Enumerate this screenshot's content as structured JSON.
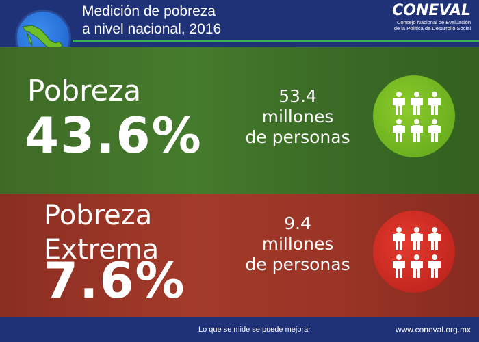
{
  "header": {
    "title_line1": "Medición de pobreza",
    "title_line2": "a nivel nacional, 2016",
    "brand_name": "CONEVAL",
    "brand_sub_line1": "Consejo Nacional de Evaluación",
    "brand_sub_line2": "de la Política de Desarrollo Social"
  },
  "pobreza": {
    "label": "Pobreza",
    "value": "43.6%",
    "count_line1": "53.4",
    "count_line2": "millones",
    "count_line3": "de personas",
    "circle_color": "#7bbf26",
    "icon": "people-icon"
  },
  "pobreza_extrema": {
    "label_line1": "Pobreza",
    "label_line2": "Extrema",
    "value": "7.6%",
    "count_line1": "9.4",
    "count_line2": "millones",
    "count_line3": "de personas",
    "circle_color": "#d42a22",
    "icon": "people-icon"
  },
  "footer": {
    "slogan": "Lo que se mide se puede mejorar",
    "url": "www.coneval.org.mx"
  },
  "colors": {
    "navy": "#1f3277",
    "green_accent": "#3db54a"
  }
}
